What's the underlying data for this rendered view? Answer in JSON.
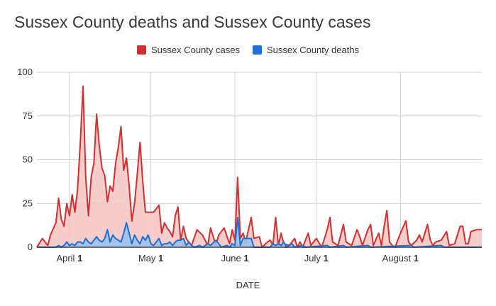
{
  "chart_data": {
    "type": "area",
    "title": "Sussex County deaths and Sussex County cases",
    "xlabel": "DATE",
    "ylabel": "",
    "ylim": [
      0,
      100
    ],
    "yticks": [
      0,
      25,
      50,
      75,
      100
    ],
    "grid": true,
    "legend_position": "top-center",
    "x_start": "2020-03-20",
    "x_end": "2020-08-31",
    "xticks": [
      {
        "date": "2020-04-01",
        "month": "April",
        "day": "1"
      },
      {
        "date": "2020-05-01",
        "month": "May",
        "day": "1"
      },
      {
        "date": "2020-06-01",
        "month": "June",
        "day": "1"
      },
      {
        "date": "2020-07-01",
        "month": "July",
        "day": "1"
      },
      {
        "date": "2020-08-01",
        "month": "August",
        "day": "1"
      }
    ],
    "series": [
      {
        "name": "Sussex County cases",
        "color": "#d32f2f",
        "fill": "#f5c4c2",
        "points": [
          [
            "2020-03-20",
            0
          ],
          [
            "2020-03-22",
            5
          ],
          [
            "2020-03-24",
            1
          ],
          [
            "2020-03-25",
            7
          ],
          [
            "2020-03-27",
            14
          ],
          [
            "2020-03-28",
            28
          ],
          [
            "2020-03-29",
            16
          ],
          [
            "2020-03-30",
            12
          ],
          [
            "2020-03-31",
            25
          ],
          [
            "2020-04-01",
            18
          ],
          [
            "2020-04-02",
            30
          ],
          [
            "2020-04-03",
            20
          ],
          [
            "2020-04-04",
            33
          ],
          [
            "2020-04-05",
            60
          ],
          [
            "2020-04-06",
            92
          ],
          [
            "2020-04-07",
            40
          ],
          [
            "2020-04-08",
            18
          ],
          [
            "2020-04-09",
            40
          ],
          [
            "2020-04-10",
            48
          ],
          [
            "2020-04-11",
            76
          ],
          [
            "2020-04-12",
            58
          ],
          [
            "2020-04-13",
            45
          ],
          [
            "2020-04-14",
            41
          ],
          [
            "2020-04-15",
            26
          ],
          [
            "2020-04-16",
            35
          ],
          [
            "2020-04-17",
            32
          ],
          [
            "2020-04-18",
            48
          ],
          [
            "2020-04-19",
            57
          ],
          [
            "2020-04-20",
            69
          ],
          [
            "2020-04-21",
            44
          ],
          [
            "2020-04-22",
            51
          ],
          [
            "2020-04-23",
            35
          ],
          [
            "2020-04-24",
            15
          ],
          [
            "2020-04-25",
            25
          ],
          [
            "2020-04-26",
            42
          ],
          [
            "2020-04-27",
            60
          ],
          [
            "2020-04-28",
            38
          ],
          [
            "2020-04-29",
            20
          ],
          [
            "2020-04-30",
            20
          ],
          [
            "2020-05-01",
            20
          ],
          [
            "2020-05-02",
            20
          ],
          [
            "2020-05-03",
            22
          ],
          [
            "2020-05-04",
            24
          ],
          [
            "2020-05-05",
            8
          ],
          [
            "2020-05-06",
            14
          ],
          [
            "2020-05-07",
            11
          ],
          [
            "2020-05-08",
            9
          ],
          [
            "2020-05-09",
            6
          ],
          [
            "2020-05-10",
            18
          ],
          [
            "2020-05-11",
            23
          ],
          [
            "2020-05-12",
            4
          ],
          [
            "2020-05-13",
            12
          ],
          [
            "2020-05-14",
            5
          ],
          [
            "2020-05-16",
            1
          ],
          [
            "2020-05-18",
            10
          ],
          [
            "2020-05-20",
            7
          ],
          [
            "2020-05-22",
            1
          ],
          [
            "2020-05-23",
            11
          ],
          [
            "2020-05-25",
            1
          ],
          [
            "2020-05-26",
            7
          ],
          [
            "2020-05-28",
            11
          ],
          [
            "2020-05-30",
            2
          ],
          [
            "2020-05-31",
            10
          ],
          [
            "2020-06-01",
            4
          ],
          [
            "2020-06-02",
            40
          ],
          [
            "2020-06-03",
            5
          ],
          [
            "2020-06-04",
            8
          ],
          [
            "2020-06-05",
            3
          ],
          [
            "2020-06-06",
            10
          ],
          [
            "2020-06-07",
            17
          ],
          [
            "2020-06-08",
            5
          ],
          [
            "2020-06-10",
            6
          ],
          [
            "2020-06-11",
            0
          ],
          [
            "2020-06-13",
            3
          ],
          [
            "2020-06-14",
            4
          ],
          [
            "2020-06-15",
            1
          ],
          [
            "2020-06-16",
            17
          ],
          [
            "2020-06-17",
            1
          ],
          [
            "2020-06-18",
            8
          ],
          [
            "2020-06-19",
            2
          ],
          [
            "2020-06-21",
            1
          ],
          [
            "2020-06-23",
            5
          ],
          [
            "2020-06-24",
            0
          ],
          [
            "2020-06-25",
            3
          ],
          [
            "2020-06-26",
            0
          ],
          [
            "2020-06-28",
            8
          ],
          [
            "2020-06-29",
            1
          ],
          [
            "2020-07-01",
            5
          ],
          [
            "2020-07-03",
            0
          ],
          [
            "2020-07-05",
            10
          ],
          [
            "2020-07-06",
            17
          ],
          [
            "2020-07-07",
            3
          ],
          [
            "2020-07-09",
            1
          ],
          [
            "2020-07-11",
            13
          ],
          [
            "2020-07-12",
            3
          ],
          [
            "2020-07-14",
            1
          ],
          [
            "2020-07-16",
            10
          ],
          [
            "2020-07-17",
            6
          ],
          [
            "2020-07-18",
            1
          ],
          [
            "2020-07-20",
            10
          ],
          [
            "2020-07-21",
            13
          ],
          [
            "2020-07-22",
            1
          ],
          [
            "2020-07-24",
            8
          ],
          [
            "2020-07-25",
            1
          ],
          [
            "2020-07-26",
            12
          ],
          [
            "2020-07-27",
            21
          ],
          [
            "2020-07-28",
            3
          ],
          [
            "2020-07-29",
            1
          ],
          [
            "2020-07-30",
            0
          ],
          [
            "2020-08-01",
            8
          ],
          [
            "2020-08-03",
            15
          ],
          [
            "2020-08-04",
            3
          ],
          [
            "2020-08-05",
            1
          ],
          [
            "2020-08-07",
            4
          ],
          [
            "2020-08-08",
            7
          ],
          [
            "2020-08-09",
            3
          ],
          [
            "2020-08-11",
            13
          ],
          [
            "2020-08-12",
            4
          ],
          [
            "2020-08-13",
            1
          ],
          [
            "2020-08-14",
            3
          ],
          [
            "2020-08-16",
            4
          ],
          [
            "2020-08-18",
            9
          ],
          [
            "2020-08-19",
            1
          ],
          [
            "2020-08-21",
            2
          ],
          [
            "2020-08-23",
            12
          ],
          [
            "2020-08-24",
            12
          ],
          [
            "2020-08-25",
            2
          ],
          [
            "2020-08-26",
            2
          ],
          [
            "2020-08-27",
            9
          ],
          [
            "2020-08-29",
            10
          ],
          [
            "2020-08-31",
            10
          ]
        ]
      },
      {
        "name": "Sussex County deaths",
        "color": "#1e6fd9",
        "fill": "#9fc2ee",
        "points": [
          [
            "2020-03-20",
            0
          ],
          [
            "2020-03-27",
            0
          ],
          [
            "2020-03-28",
            1
          ],
          [
            "2020-03-29",
            0
          ],
          [
            "2020-03-30",
            1
          ],
          [
            "2020-03-31",
            3
          ],
          [
            "2020-04-01",
            1
          ],
          [
            "2020-04-02",
            2
          ],
          [
            "2020-04-03",
            1
          ],
          [
            "2020-04-04",
            3
          ],
          [
            "2020-04-05",
            3
          ],
          [
            "2020-04-06",
            2
          ],
          [
            "2020-04-07",
            5
          ],
          [
            "2020-04-08",
            3
          ],
          [
            "2020-04-09",
            2
          ],
          [
            "2020-04-10",
            4
          ],
          [
            "2020-04-11",
            6
          ],
          [
            "2020-04-12",
            4
          ],
          [
            "2020-04-13",
            3
          ],
          [
            "2020-04-14",
            5
          ],
          [
            "2020-04-15",
            10
          ],
          [
            "2020-04-16",
            3
          ],
          [
            "2020-04-17",
            7
          ],
          [
            "2020-04-18",
            5
          ],
          [
            "2020-04-19",
            4
          ],
          [
            "2020-04-20",
            3
          ],
          [
            "2020-04-21",
            8
          ],
          [
            "2020-04-22",
            14
          ],
          [
            "2020-04-23",
            8
          ],
          [
            "2020-04-24",
            2
          ],
          [
            "2020-04-25",
            7
          ],
          [
            "2020-04-26",
            4
          ],
          [
            "2020-04-27",
            2
          ],
          [
            "2020-04-28",
            6
          ],
          [
            "2020-04-29",
            4
          ],
          [
            "2020-04-30",
            7
          ],
          [
            "2020-05-01",
            2
          ],
          [
            "2020-05-02",
            1
          ],
          [
            "2020-05-03",
            3
          ],
          [
            "2020-05-04",
            5
          ],
          [
            "2020-05-05",
            1
          ],
          [
            "2020-05-06",
            2
          ],
          [
            "2020-05-07",
            2
          ],
          [
            "2020-05-08",
            3
          ],
          [
            "2020-05-09",
            1
          ],
          [
            "2020-05-10",
            3
          ],
          [
            "2020-05-11",
            4
          ],
          [
            "2020-05-12",
            4
          ],
          [
            "2020-05-13",
            5
          ],
          [
            "2020-05-14",
            1
          ],
          [
            "2020-05-15",
            3
          ],
          [
            "2020-05-16",
            1
          ],
          [
            "2020-05-17",
            0
          ],
          [
            "2020-05-19",
            1
          ],
          [
            "2020-05-20",
            0
          ],
          [
            "2020-05-22",
            2
          ],
          [
            "2020-05-23",
            1
          ],
          [
            "2020-05-25",
            4
          ],
          [
            "2020-05-26",
            2
          ],
          [
            "2020-05-27",
            0
          ],
          [
            "2020-05-29",
            1
          ],
          [
            "2020-05-30",
            0
          ],
          [
            "2020-05-31",
            2
          ],
          [
            "2020-06-01",
            1
          ],
          [
            "2020-06-02",
            17
          ],
          [
            "2020-06-03",
            1
          ],
          [
            "2020-06-04",
            5
          ],
          [
            "2020-06-05",
            5
          ],
          [
            "2020-06-06",
            5
          ],
          [
            "2020-06-07",
            5
          ],
          [
            "2020-06-08",
            0
          ],
          [
            "2020-06-14",
            0
          ],
          [
            "2020-06-15",
            2
          ],
          [
            "2020-06-16",
            1
          ],
          [
            "2020-06-17",
            2
          ],
          [
            "2020-06-18",
            1
          ],
          [
            "2020-06-19",
            3
          ],
          [
            "2020-06-20",
            0
          ],
          [
            "2020-06-22",
            2
          ],
          [
            "2020-06-23",
            0
          ],
          [
            "2020-06-26",
            1
          ],
          [
            "2020-06-27",
            0
          ],
          [
            "2020-07-05",
            1
          ],
          [
            "2020-07-06",
            0
          ],
          [
            "2020-07-11",
            1
          ],
          [
            "2020-07-12",
            0
          ],
          [
            "2020-07-20",
            1
          ],
          [
            "2020-07-21",
            0
          ],
          [
            "2020-08-05",
            1
          ],
          [
            "2020-08-06",
            0
          ],
          [
            "2020-08-16",
            1
          ],
          [
            "2020-08-17",
            0
          ],
          [
            "2020-08-31",
            0
          ]
        ]
      }
    ]
  }
}
